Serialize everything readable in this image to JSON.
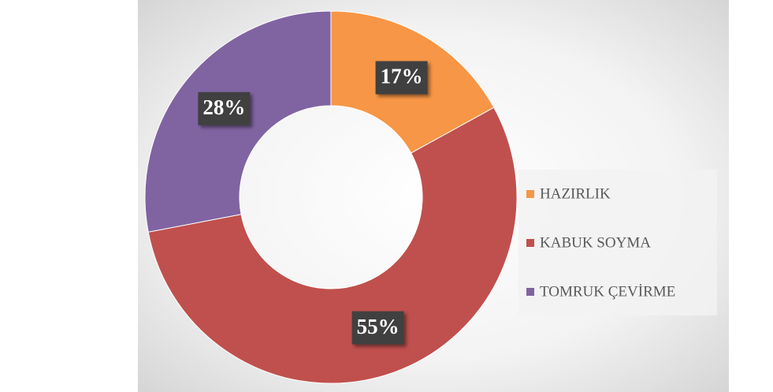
{
  "chart_data": {
    "type": "donut",
    "categories": [
      "HAZIRLIK",
      "KABUK SOYMA",
      "TOMRUK ÇEVİRME"
    ],
    "values": [
      17,
      55,
      28
    ],
    "value_labels": [
      "17%",
      "55%",
      "28%"
    ],
    "colors": [
      "#f79646",
      "#c0504d",
      "#8064a2"
    ],
    "legend": "right"
  }
}
